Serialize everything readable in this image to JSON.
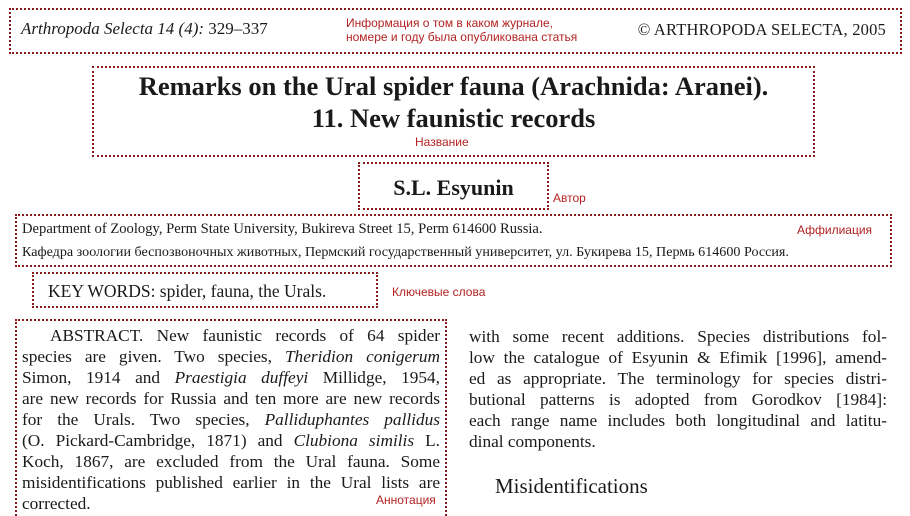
{
  "header": {
    "journal_name": "Arthropoda Selecta 14 (4):",
    "pages": "329–337",
    "note_line1": "Информация о том в каком журнале,",
    "note_line2": "номере и году была опубликована статья",
    "copyright": "© ARTHROPODA SELECTA, 2005"
  },
  "title": {
    "line1": "Remarks on the Ural spider fauna (Arachnida: Aranei).",
    "line2": "11. New faunistic records",
    "note": "Название"
  },
  "author": {
    "name": "S.L. Esyunin",
    "note": "Автор"
  },
  "affiliation": {
    "english": "Department of Zoology, Perm State University, Bukireva Street 15, Perm 614600 Russia.",
    "russian": "Кафедра зоологии беспозвоночных животных, Пермский государственный университет, ул. Букирева 15, Пермь 614600 Россия.",
    "note": "Аффилиация"
  },
  "keywords": {
    "text": "KEY WORDS: spider, fauna, the Urals.",
    "note": "Ключевые слова"
  },
  "abstract": {
    "note": "Аннотация",
    "l1": "ABSTRACT. New faunistic records of 64 spider",
    "l2a": "species are given. Two species,",
    "l2b": "Theridion conigerum",
    "l3a": "Simon, 1914 and",
    "l3b": "Praestigia duffeyi",
    "l3c": "Millidge, 1954,",
    "l4": "are new records for Russia and ten more are new records",
    "l5a": "for the Urals. Two species,",
    "l5b": "Palliduphantes pallidus",
    "l6a": "(O. Pickard-Cambridge, 1871) and",
    "l6b": "Clubiona similis",
    "l6c": "L.",
    "l7": "Koch, 1867, are excluded from the Ural fauna. Some",
    "l8": "misidentifications published earlier in the Ural lists are",
    "l9": "corrected."
  },
  "right_column": {
    "l1": "with some recent additions. Species distributions fol-",
    "l2": "low the catalogue of Esyunin & Efimik [1996], amend-",
    "l3": "ed as appropriate. The terminology for species distri-",
    "l4": "butional patterns is adopted from Gorodkov [1984]:",
    "l5": "each range name includes both longitudinal and latitu-",
    "l6": "dinal components.",
    "section_heading": "Misidentifications"
  }
}
